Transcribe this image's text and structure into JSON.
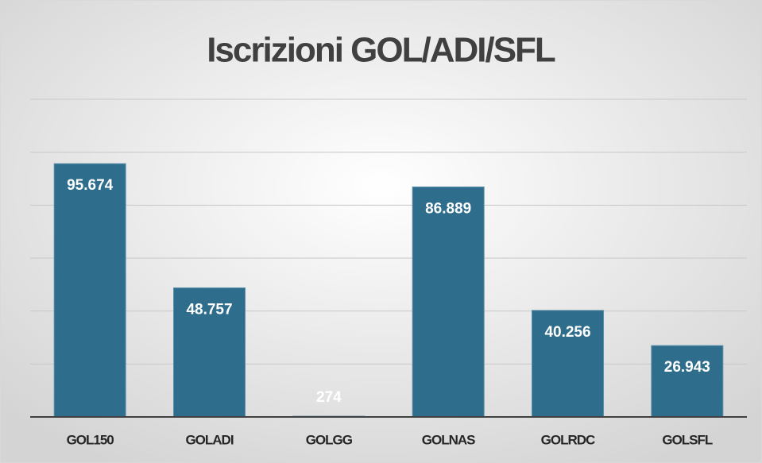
{
  "chart_data": {
    "type": "bar",
    "title": "Iscrizioni GOL/ADI/SFL",
    "categories": [
      "GOL150",
      "GOLADI",
      "GOLGG",
      "GOLNAS",
      "GOLRDC",
      "GOLSFL"
    ],
    "values": [
      95674,
      48757,
      274,
      86889,
      40256,
      26943
    ],
    "value_labels": [
      "95.674",
      "48.757",
      "274",
      "86.889",
      "40.256",
      "26.943"
    ],
    "color": "#2f6d8c",
    "ylim": [
      0,
      120000
    ],
    "yticks": [
      0,
      20000,
      40000,
      60000,
      80000,
      100000,
      120000
    ],
    "grid": true
  }
}
